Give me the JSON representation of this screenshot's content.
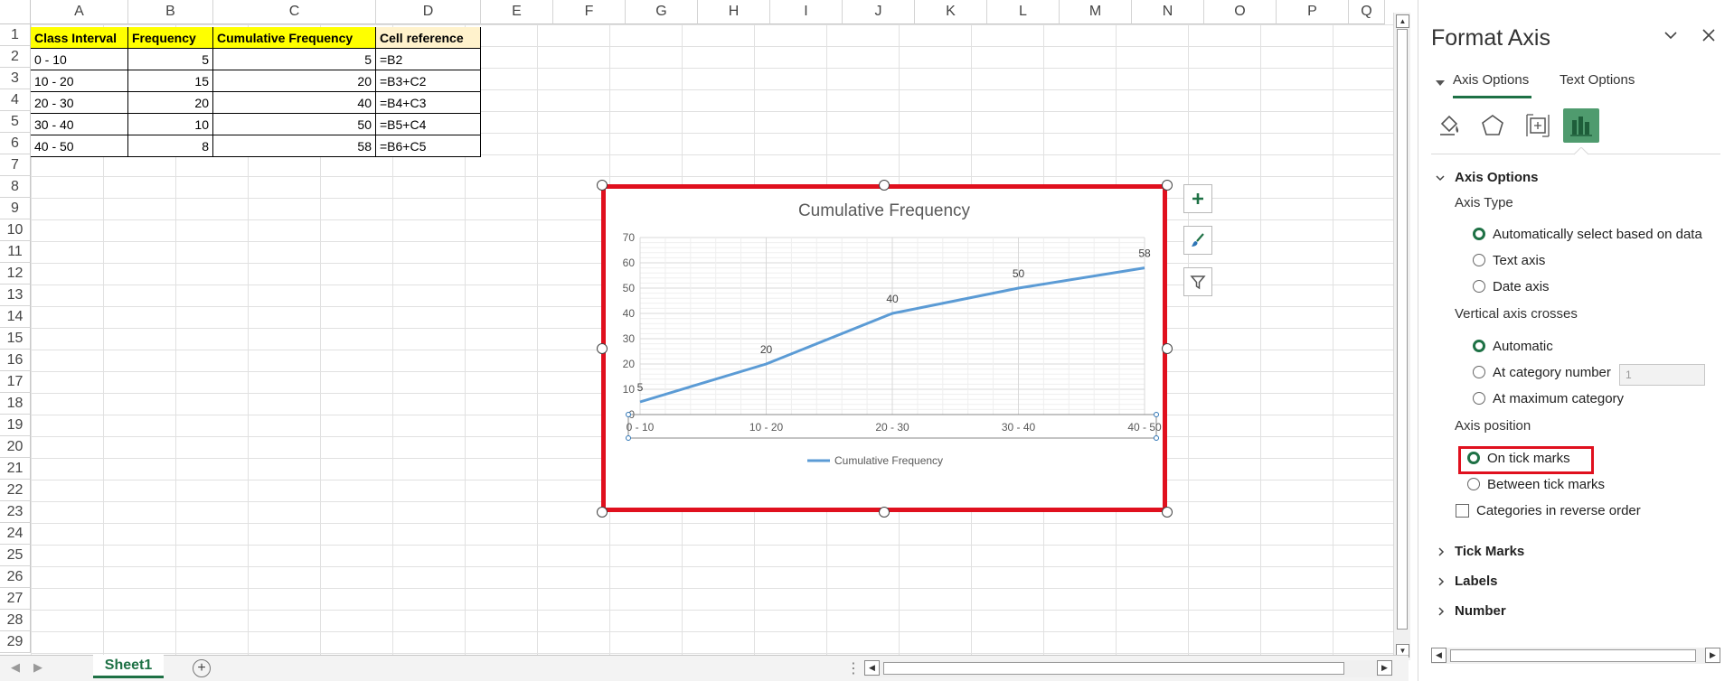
{
  "columns": [
    "A",
    "B",
    "C",
    "D",
    "E",
    "F",
    "G",
    "H",
    "I",
    "J",
    "K",
    "L",
    "M",
    "N",
    "O",
    "P",
    "Q"
  ],
  "rows": [
    "1",
    "2",
    "3",
    "4",
    "5",
    "6",
    "7",
    "8",
    "9",
    "10",
    "11",
    "12",
    "13",
    "14",
    "15",
    "16",
    "17",
    "18",
    "19",
    "20",
    "21",
    "22",
    "23",
    "24",
    "25",
    "26",
    "27",
    "28",
    "29"
  ],
  "table": {
    "headers": [
      "Class Interval",
      "Frequency",
      "Cumulative Frequency",
      "Cell reference"
    ],
    "rows": [
      [
        "0 - 10",
        "5",
        "5",
        "=B2"
      ],
      [
        "10 - 20",
        "15",
        "20",
        "=B3+C2"
      ],
      [
        "20 - 30",
        "20",
        "40",
        "=B4+C3"
      ],
      [
        "30 - 40",
        "10",
        "50",
        "=B5+C4"
      ],
      [
        "40 - 50",
        "8",
        "58",
        "=B6+C5"
      ]
    ]
  },
  "chart_data": {
    "type": "line",
    "title": "Cumulative Frequency",
    "categories": [
      "0 - 10",
      "10 - 20",
      "20 - 30",
      "30 - 40",
      "40 - 50"
    ],
    "series": [
      {
        "name": "Cumulative Frequency",
        "values": [
          5,
          20,
          40,
          50,
          58
        ],
        "color": "#5b9bd5"
      }
    ],
    "data_labels": [
      "5",
      "20",
      "40",
      "50",
      "58"
    ],
    "yticks": [
      "0",
      "10",
      "20",
      "30",
      "40",
      "50",
      "60",
      "70"
    ],
    "ylim": [
      0,
      70
    ],
    "grid": true,
    "legend": "bottom",
    "xlabel": "",
    "ylabel": ""
  },
  "chart_buttons": [
    "plus-icon",
    "brush-icon",
    "filter-icon"
  ],
  "sheet": {
    "tab_label": "Sheet1",
    "add_icon": "plus-circle-icon",
    "accent": "#1e7145"
  },
  "pane": {
    "title": "Format Axis",
    "tabs": [
      "Axis Options",
      "Text Options"
    ],
    "icons": [
      "fill-line-icon",
      "effects-pentagon-icon",
      "size-properties-icon",
      "axis-options-bar-chart-icon"
    ],
    "section_axis_options": "Axis Options",
    "axis_type_label": "Axis Type",
    "axis_type_options": [
      "Automatically select based on data",
      "Text axis",
      "Date axis"
    ],
    "axis_type_selected": 0,
    "vertical_crosses_label": "Vertical axis crosses",
    "vertical_crosses_options": [
      "Automatic",
      "At category number",
      "At maximum category"
    ],
    "vertical_crosses_selected": 0,
    "category_number_value": "1",
    "axis_position_label": "Axis position",
    "axis_position_options": [
      "On tick marks",
      "Between tick marks"
    ],
    "axis_position_selected": 0,
    "reverse_order_label": "Categories in reverse order",
    "collapsed_sections": [
      "Tick Marks",
      "Labels",
      "Number"
    ]
  },
  "highlight_color": "#e0101e"
}
